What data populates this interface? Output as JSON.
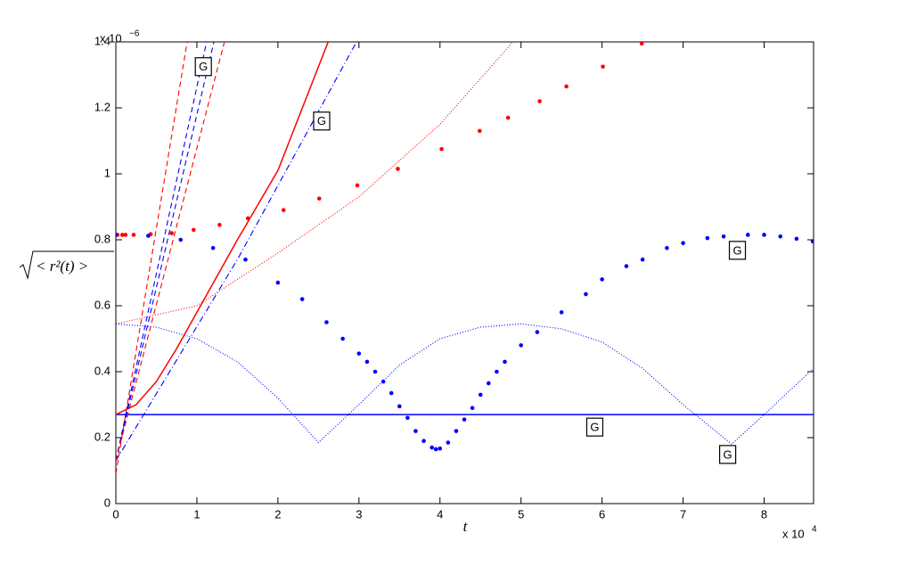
{
  "chart_data": {
    "type": "line",
    "xlabel": "t",
    "ylabel": "< r²(t) >",
    "x_multiplier": {
      "base": "x 10",
      "exponent": "4"
    },
    "y_multiplier": {
      "base": "x 10",
      "exponent": "−6"
    },
    "xlim": [
      0,
      8.61
    ],
    "ylim": [
      0,
      1.4
    ],
    "xticks": [
      0,
      1,
      2,
      3,
      4,
      5,
      6,
      7,
      8
    ],
    "yticks": [
      0,
      0.2,
      0.4,
      0.6,
      0.8,
      1,
      1.2,
      1.4
    ],
    "series": [
      {
        "color": "#ff0000",
        "style": "markers",
        "x": [
          0.02,
          0.08,
          0.12,
          0.22,
          0.43,
          0.69,
          0.96,
          1.28,
          1.63,
          2.07,
          2.51,
          2.98,
          3.48,
          4.02,
          4.49,
          4.84,
          5.23,
          5.56,
          6.01,
          6.49
        ],
        "values": [
          0.815,
          0.815,
          0.815,
          0.815,
          0.817,
          0.82,
          0.83,
          0.845,
          0.865,
          0.89,
          0.925,
          0.965,
          1.015,
          1.075,
          1.13,
          1.17,
          1.22,
          1.265,
          1.325,
          1.395
        ]
      },
      {
        "color": "#0000ff",
        "style": "markers",
        "x": [
          0,
          0.4,
          0.8,
          1.2,
          1.6,
          2.0,
          2.3,
          2.6,
          2.8,
          3.0,
          3.1,
          3.2,
          3.3,
          3.4,
          3.5,
          3.6,
          3.7,
          3.8,
          3.9,
          3.95,
          4.0,
          4.1,
          4.2,
          4.3,
          4.4,
          4.5,
          4.6,
          4.7,
          4.8,
          5.0,
          5.2,
          5.5,
          5.8,
          6.0,
          6.3,
          6.5,
          6.8,
          7.0,
          7.3,
          7.5,
          7.8,
          8.0,
          8.2,
          8.4,
          8.6
        ],
        "values": [
          0.815,
          0.812,
          0.8,
          0.775,
          0.74,
          0.67,
          0.62,
          0.55,
          0.5,
          0.455,
          0.43,
          0.4,
          0.37,
          0.335,
          0.295,
          0.26,
          0.22,
          0.19,
          0.17,
          0.165,
          0.167,
          0.185,
          0.22,
          0.255,
          0.29,
          0.33,
          0.365,
          0.4,
          0.43,
          0.48,
          0.52,
          0.58,
          0.635,
          0.68,
          0.72,
          0.74,
          0.775,
          0.79,
          0.805,
          0.81,
          0.815,
          0.815,
          0.81,
          0.803,
          0.795
        ]
      },
      {
        "color": "#0000ff",
        "style": "solid",
        "x": [
          0,
          8.61
        ],
        "values": [
          0.27,
          0.27
        ]
      },
      {
        "color": "#ff0000",
        "style": "solid",
        "x": [
          0,
          0.25,
          0.5,
          0.75,
          1.0,
          1.5,
          2.0,
          2.62
        ],
        "values": [
          0.27,
          0.3,
          0.37,
          0.47,
          0.58,
          0.8,
          1.01,
          1.4
        ]
      },
      {
        "color": "#ff0000",
        "style": "dotted",
        "x": [
          0,
          1,
          2,
          3,
          4,
          4.9
        ],
        "values": [
          0.545,
          0.6,
          0.76,
          0.93,
          1.15,
          1.4
        ]
      },
      {
        "color": "#0000ff",
        "style": "dotted",
        "x": [
          0,
          0.5,
          1,
          1.5,
          2,
          2.5,
          3,
          3.5,
          4,
          4.5,
          5,
          5.5,
          6,
          6.5,
          7,
          7.6,
          8,
          8.61
        ],
        "values": [
          0.545,
          0.535,
          0.5,
          0.43,
          0.32,
          0.185,
          0.3,
          0.42,
          0.5,
          0.535,
          0.545,
          0.53,
          0.49,
          0.41,
          0.3,
          0.18,
          0.27,
          0.41
        ]
      },
      {
        "color": "#0000ff",
        "style": "dashdot",
        "x": [
          0,
          1.5,
          2.97
        ],
        "values": [
          0.13,
          0.74,
          1.4
        ]
      },
      {
        "color": "#ff0000",
        "style": "dashed",
        "x": [
          0,
          0.88
        ],
        "values": [
          0.09,
          1.4
        ]
      },
      {
        "color": "#0000ff",
        "style": "dashed",
        "x": [
          0,
          1.12
        ],
        "values": [
          0.13,
          1.4
        ]
      },
      {
        "color": "#0000ff",
        "style": "dashed",
        "x": [
          0,
          1.21
        ],
        "values": [
          0.13,
          1.4
        ]
      },
      {
        "color": "#ff0000",
        "style": "dashed",
        "x": [
          0,
          1.34
        ],
        "values": [
          0.13,
          1.4
        ]
      }
    ],
    "annotations": [
      {
        "text": "G",
        "x": 1.08,
        "y": 1.325
      },
      {
        "text": "G",
        "x": 2.54,
        "y": 1.16
      },
      {
        "text": "G",
        "x": 7.67,
        "y": 0.768
      },
      {
        "text": "G",
        "x": 5.91,
        "y": 0.232
      },
      {
        "text": "G",
        "x": 7.55,
        "y": 0.149
      }
    ]
  }
}
